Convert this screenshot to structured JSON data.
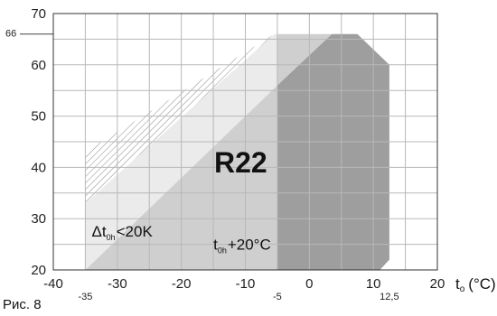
{
  "chart_data": {
    "type": "area",
    "title": "",
    "refrigerant_label": "R22",
    "caption": "Рис. 8",
    "xlabel": {
      "main": "t",
      "sub": "o",
      "unit": "(°C)"
    },
    "ylabel": "",
    "xlim": [
      -40,
      20
    ],
    "ylim": [
      20,
      70
    ],
    "x_ticks": [
      -40,
      -30,
      -20,
      -10,
      0,
      10,
      20
    ],
    "y_ticks": [
      20,
      30,
      40,
      50,
      60,
      70
    ],
    "extra_x_ticks": [
      {
        "value": -35,
        "label": "-35"
      },
      {
        "value": -5,
        "label": "-5"
      },
      {
        "value": 12.5,
        "label": "12,5"
      }
    ],
    "extra_y_ticks": [
      {
        "value": 66,
        "label": "66"
      }
    ],
    "grid": true,
    "regions": [
      {
        "name": "dark-envelope",
        "fill": "#9e9e9e",
        "points": [
          [
            -5,
            20
          ],
          [
            -5,
            56
          ],
          [
            3.5,
            66
          ],
          [
            7.5,
            66
          ],
          [
            12.5,
            60
          ],
          [
            12.5,
            22
          ],
          [
            11,
            20
          ]
        ]
      },
      {
        "name": "grey-envelope",
        "fill": "#cfcfcf",
        "points": [
          [
            -35,
            20
          ],
          [
            -5,
            56
          ],
          [
            -5,
            66
          ],
          [
            3.5,
            66
          ],
          [
            -5,
            56
          ],
          [
            -5,
            20
          ]
        ]
      },
      {
        "name": "light-envelope",
        "fill": "#ebebeb",
        "points": [
          [
            -35,
            20
          ],
          [
            -35,
            33
          ],
          [
            -5.5,
            66
          ],
          [
            -5,
            66
          ],
          [
            -5,
            56
          ]
        ]
      },
      {
        "name": "hatched-envelope",
        "fill": "hatch",
        "points": [
          [
            -35,
            33
          ],
          [
            -35,
            43
          ],
          [
            -5.5,
            66
          ]
        ]
      }
    ],
    "annotations": [
      {
        "name": "delta-t-label",
        "prefix": "Δt",
        "sub": "0h",
        "suffix": "<20K",
        "x": -34,
        "y": 26.5
      },
      {
        "name": "t-superheat-label",
        "prefix": "t",
        "sub": "0h",
        "suffix": "+20°C",
        "x": -15,
        "y": 24
      }
    ]
  }
}
